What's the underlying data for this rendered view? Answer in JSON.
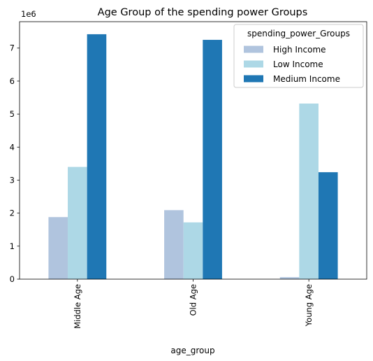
{
  "chart_data": {
    "type": "bar",
    "title": "Age Group of the spending power Groups",
    "xlabel": "age_group",
    "ylabel": "",
    "y_scale_label": "1e6",
    "ylim": [
      0,
      7.8
    ],
    "y_ticks": [
      0,
      1,
      2,
      3,
      4,
      5,
      6,
      7
    ],
    "categories": [
      "Middle Age",
      "Old Age",
      "Young Age"
    ],
    "legend_title": "spending_power_Groups",
    "legend_position": "top-right",
    "grid": false,
    "series": [
      {
        "name": "High Income",
        "color": "#b0c4de",
        "values": [
          1.88,
          2.09,
          0.06
        ]
      },
      {
        "name": "Low Income",
        "color": "#add8e6",
        "values": [
          3.4,
          1.72,
          5.32
        ]
      },
      {
        "name": "Medium Income",
        "color": "#1f77b4",
        "values": [
          7.42,
          7.25,
          3.24
        ]
      }
    ]
  }
}
